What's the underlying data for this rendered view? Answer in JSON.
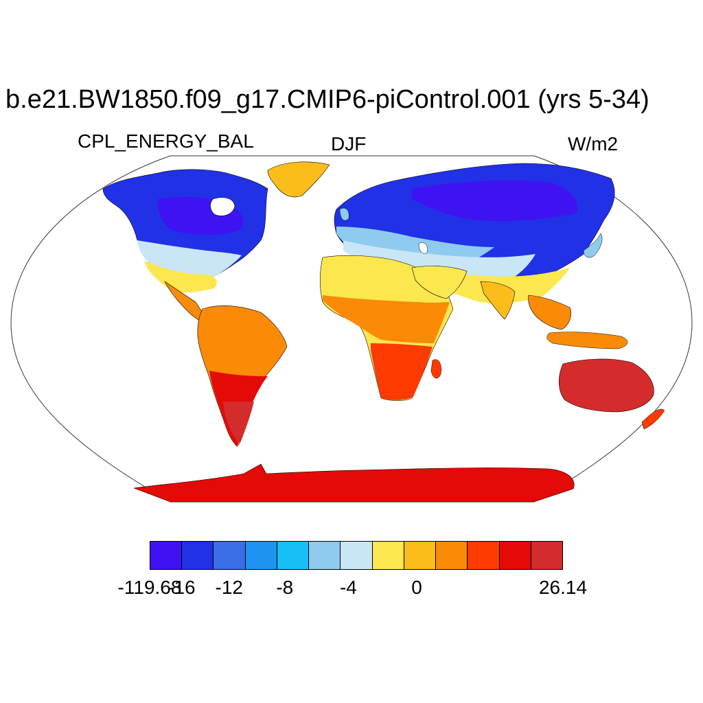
{
  "title": "b.e21.BW1850.f09_g17.CMIP6-piControl.001 (yrs 5-34)",
  "left_subtitle": "CPL_ENERGY_BAL",
  "center_subtitle": "DJF",
  "right_subtitle": "W/m2",
  "colors": {
    "ocean": "#ffffff",
    "outline": "#000000"
  },
  "colorbar": {
    "colors": [
      "#3f12f2",
      "#2131e6",
      "#3a6fe8",
      "#1f93f0",
      "#17bff6",
      "#8ecbee",
      "#c8e6f6",
      "#fde74e",
      "#fbbd1a",
      "#fb8a06",
      "#fd3b00",
      "#e40a05",
      "#d42c2c"
    ],
    "labels": [
      {
        "text": "-119.68",
        "boundary": 0
      },
      {
        "text": "-16",
        "boundary": 1
      },
      {
        "text": "-12",
        "boundary": 2.5
      },
      {
        "text": "-8",
        "boundary": 4.25
      },
      {
        "text": "-4",
        "boundary": 6.25
      },
      {
        "text": "0",
        "boundary": 8.4
      },
      {
        "text": "26.14",
        "boundary": 13
      }
    ]
  }
}
